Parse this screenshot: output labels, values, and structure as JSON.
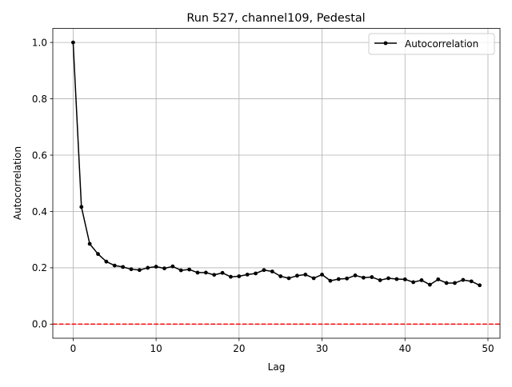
{
  "chart_data": {
    "type": "line",
    "title": "Run 527, channel109, Pedestal",
    "xlabel": "Lag",
    "ylabel": "Autocorrelation",
    "xlim": [
      -2.45,
      51.45
    ],
    "ylim": [
      -0.05,
      1.05
    ],
    "x_ticks": [
      0,
      10,
      20,
      30,
      40,
      50
    ],
    "y_ticks": [
      0.0,
      0.2,
      0.4,
      0.6,
      0.8,
      1.0
    ],
    "x_tick_labels": [
      "0",
      "10",
      "20",
      "30",
      "40",
      "50"
    ],
    "y_tick_labels": [
      "0.0",
      "0.2",
      "0.4",
      "0.6",
      "0.8",
      "1.0"
    ],
    "grid": true,
    "legend_position": "top-right",
    "reference_line": {
      "y": 0.0,
      "color": "#ff0000",
      "style": "dashed"
    },
    "series": [
      {
        "name": "Autocorrelation",
        "color": "#000000",
        "marker": "dot",
        "x": [
          0,
          1,
          2,
          3,
          4,
          5,
          6,
          7,
          8,
          9,
          10,
          11,
          12,
          13,
          14,
          15,
          16,
          17,
          18,
          19,
          20,
          21,
          22,
          23,
          24,
          25,
          26,
          27,
          28,
          29,
          30,
          31,
          32,
          33,
          34,
          35,
          36,
          37,
          38,
          39,
          40,
          41,
          42,
          43,
          44,
          45,
          46,
          47,
          48,
          49
        ],
        "values": [
          1.0,
          0.416,
          0.285,
          0.249,
          0.222,
          0.208,
          0.203,
          0.195,
          0.192,
          0.2,
          0.204,
          0.198,
          0.205,
          0.191,
          0.194,
          0.183,
          0.183,
          0.175,
          0.182,
          0.168,
          0.17,
          0.176,
          0.18,
          0.192,
          0.187,
          0.17,
          0.163,
          0.172,
          0.176,
          0.163,
          0.176,
          0.154,
          0.16,
          0.162,
          0.173,
          0.165,
          0.167,
          0.156,
          0.163,
          0.16,
          0.159,
          0.149,
          0.156,
          0.14,
          0.159,
          0.146,
          0.146,
          0.157,
          0.152,
          0.138
        ]
      }
    ]
  }
}
